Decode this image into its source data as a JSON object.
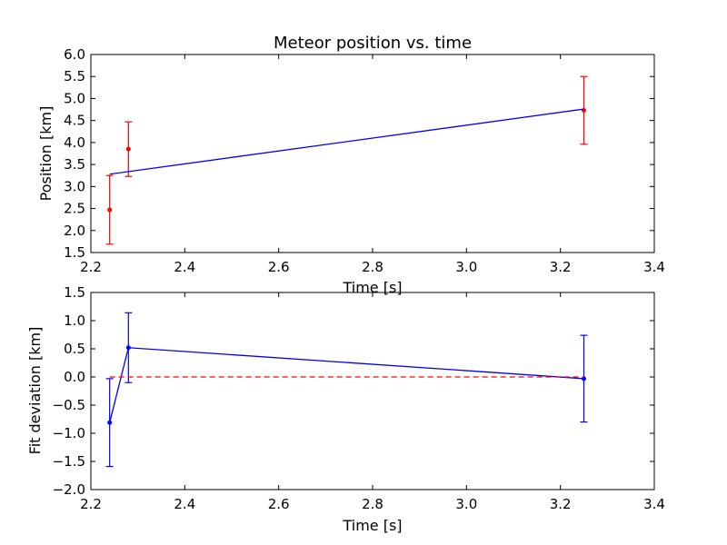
{
  "figure": {
    "background": "#ffffff"
  },
  "chart_data": [
    {
      "type": "scatter",
      "title": "Meteor position vs. time",
      "xlabel": "Time [s]",
      "ylabel": "Position [km]",
      "xlim": [
        2.2,
        3.4
      ],
      "ylim": [
        1.5,
        6.0
      ],
      "xticks": [
        "2.2",
        "2.4",
        "2.6",
        "2.8",
        "3.0",
        "3.2",
        "3.4"
      ],
      "yticks": [
        "1.5",
        "2.0",
        "2.5",
        "3.0",
        "3.5",
        "4.0",
        "4.5",
        "5.0",
        "5.5",
        "6.0"
      ],
      "grid": false,
      "series": [
        {
          "kind": "errorbar",
          "color": "#ff0000",
          "x": [
            2.24,
            2.28,
            3.25
          ],
          "y": [
            2.47,
            3.85,
            4.73
          ],
          "yerr": [
            0.78,
            0.62,
            0.77
          ]
        },
        {
          "kind": "line",
          "color": "#0000ff",
          "x": [
            2.24,
            3.25
          ],
          "y": [
            3.28,
            4.76
          ]
        }
      ]
    },
    {
      "type": "scatter",
      "title": "",
      "xlabel": "Time [s]",
      "ylabel": "Fit deviation [km]",
      "xlim": [
        2.2,
        3.4
      ],
      "ylim": [
        -2.0,
        1.5
      ],
      "xticks": [
        "2.2",
        "2.4",
        "2.6",
        "2.8",
        "3.0",
        "3.2",
        "3.4"
      ],
      "yticks": [
        "−2.0",
        "−1.5",
        "−1.0",
        "−0.5",
        "0.0",
        "0.5",
        "1.0",
        "1.5"
      ],
      "grid": false,
      "series": [
        {
          "kind": "errorbar-line",
          "color": "#0000ff",
          "x": [
            2.24,
            2.28,
            3.25
          ],
          "y": [
            -0.81,
            0.52,
            -0.03
          ],
          "yerr": [
            0.78,
            0.62,
            0.77
          ]
        },
        {
          "kind": "dashed-line",
          "color": "#ff0000",
          "x": [
            2.24,
            3.25
          ],
          "y": [
            0.0,
            0.0
          ]
        }
      ]
    }
  ]
}
